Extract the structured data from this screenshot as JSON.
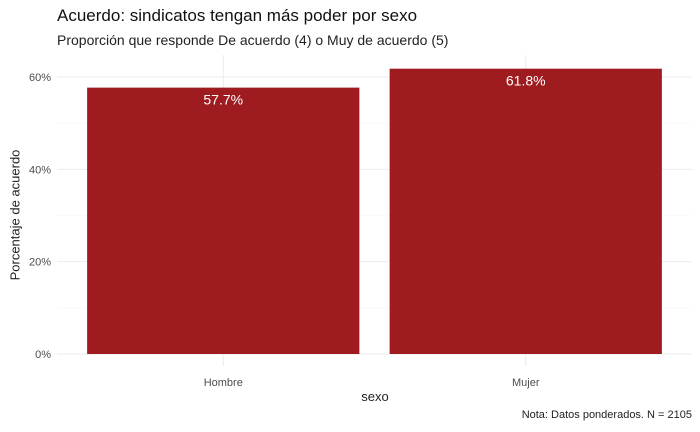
{
  "colors": {
    "bar": "#9e1c1f",
    "grid_major": "#ebebeb",
    "grid_minor": "#f5f5f5",
    "bar_label": "#ffffff"
  },
  "chart_data": {
    "type": "bar",
    "title": "Acuerdo: sindicatos tengan más poder por sexo",
    "subtitle": "Proporción que responde De acuerdo (4) o Muy de acuerdo (5)",
    "caption": "Nota: Datos ponderados. N = 2105",
    "xlabel": "sexo",
    "ylabel": "Porcentaje de acuerdo",
    "categories": [
      "Hombre",
      "Mujer"
    ],
    "values": [
      57.7,
      61.8
    ],
    "value_labels": [
      "57.7%",
      "61.8%"
    ],
    "ylim": [
      0,
      64.9
    ],
    "yticks": [
      0,
      20,
      40,
      60
    ],
    "ytick_labels": [
      "0%",
      "20%",
      "40%",
      "60%"
    ],
    "grid": true,
    "legend": "none"
  }
}
